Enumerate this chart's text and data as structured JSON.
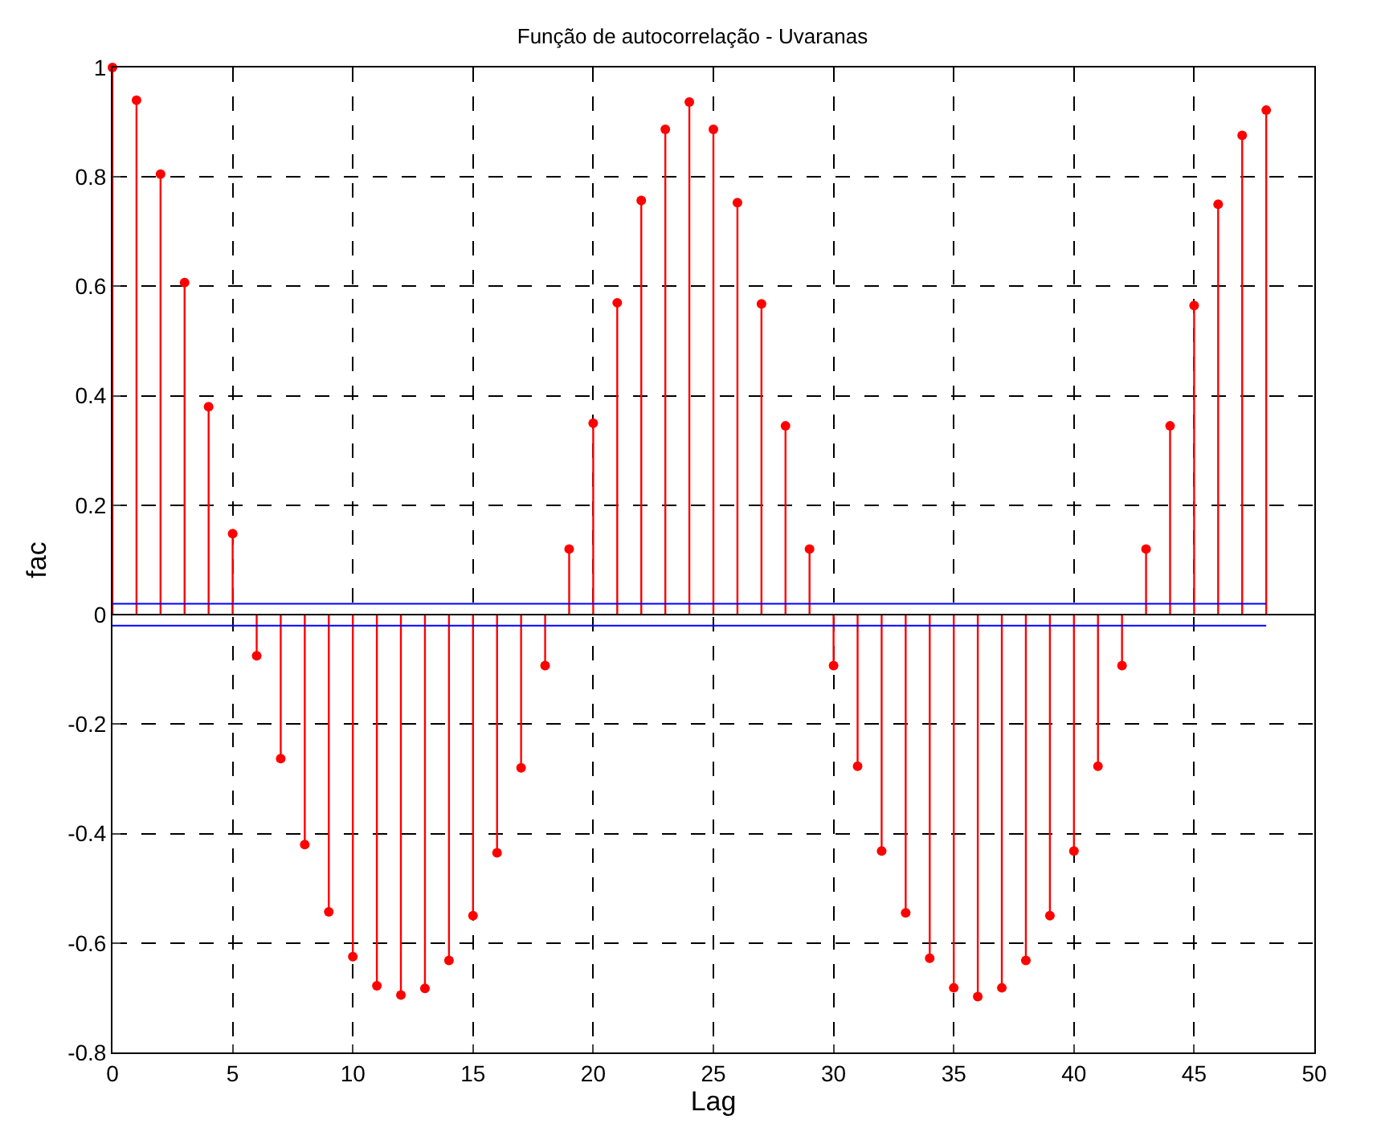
{
  "chart_data": {
    "type": "lollipop",
    "title": "Função de autocorrelação - Uvaranas",
    "xlabel": "Lag",
    "ylabel": "fac",
    "x": [
      0,
      1,
      2,
      3,
      4,
      5,
      6,
      7,
      8,
      9,
      10,
      11,
      12,
      13,
      14,
      15,
      16,
      17,
      18,
      19,
      20,
      21,
      22,
      23,
      24,
      25,
      26,
      27,
      28,
      29,
      30,
      31,
      32,
      33,
      34,
      35,
      36,
      37,
      38,
      39,
      40,
      41,
      42,
      43,
      44,
      45,
      46,
      47,
      48
    ],
    "series": [
      {
        "color": "#ff0000",
        "values": [
          1,
          0.94,
          0.805,
          0.607,
          0.38,
          0.148,
          -0.075,
          -0.263,
          -0.42,
          -0.543,
          -0.625,
          -0.678,
          -0.695,
          -0.683,
          -0.632,
          -0.55,
          -0.435,
          -0.28,
          -0.093,
          0.12,
          0.35,
          0.57,
          0.757,
          0.887,
          0.937,
          0.887,
          0.753,
          0.568,
          0.345,
          0.12,
          -0.093,
          -0.277,
          -0.432,
          -0.545,
          -0.628,
          -0.682,
          -0.698,
          -0.682,
          -0.632,
          -0.55,
          -0.432,
          -0.277,
          -0.093,
          0.12,
          0.345,
          0.565,
          0.75,
          0.876,
          0.922
        ]
      }
    ],
    "ref_lines": [
      {
        "axis": "y",
        "value": 0.02,
        "color": "#0000ff",
        "line_style": "solid"
      },
      {
        "axis": "y",
        "value": -0.02,
        "color": "#0000ff",
        "line_style": "solid"
      }
    ],
    "xlim": [
      0,
      50
    ],
    "xticks": [
      0,
      5,
      10,
      15,
      20,
      25,
      30,
      35,
      40,
      45,
      50
    ],
    "ylim": [
      -0.8,
      1
    ],
    "yticks": [
      -0.8,
      -0.6,
      -0.4,
      -0.2,
      0,
      0.2,
      0.4,
      0.6,
      0.8,
      1
    ],
    "grid": true,
    "marker": "circle"
  }
}
